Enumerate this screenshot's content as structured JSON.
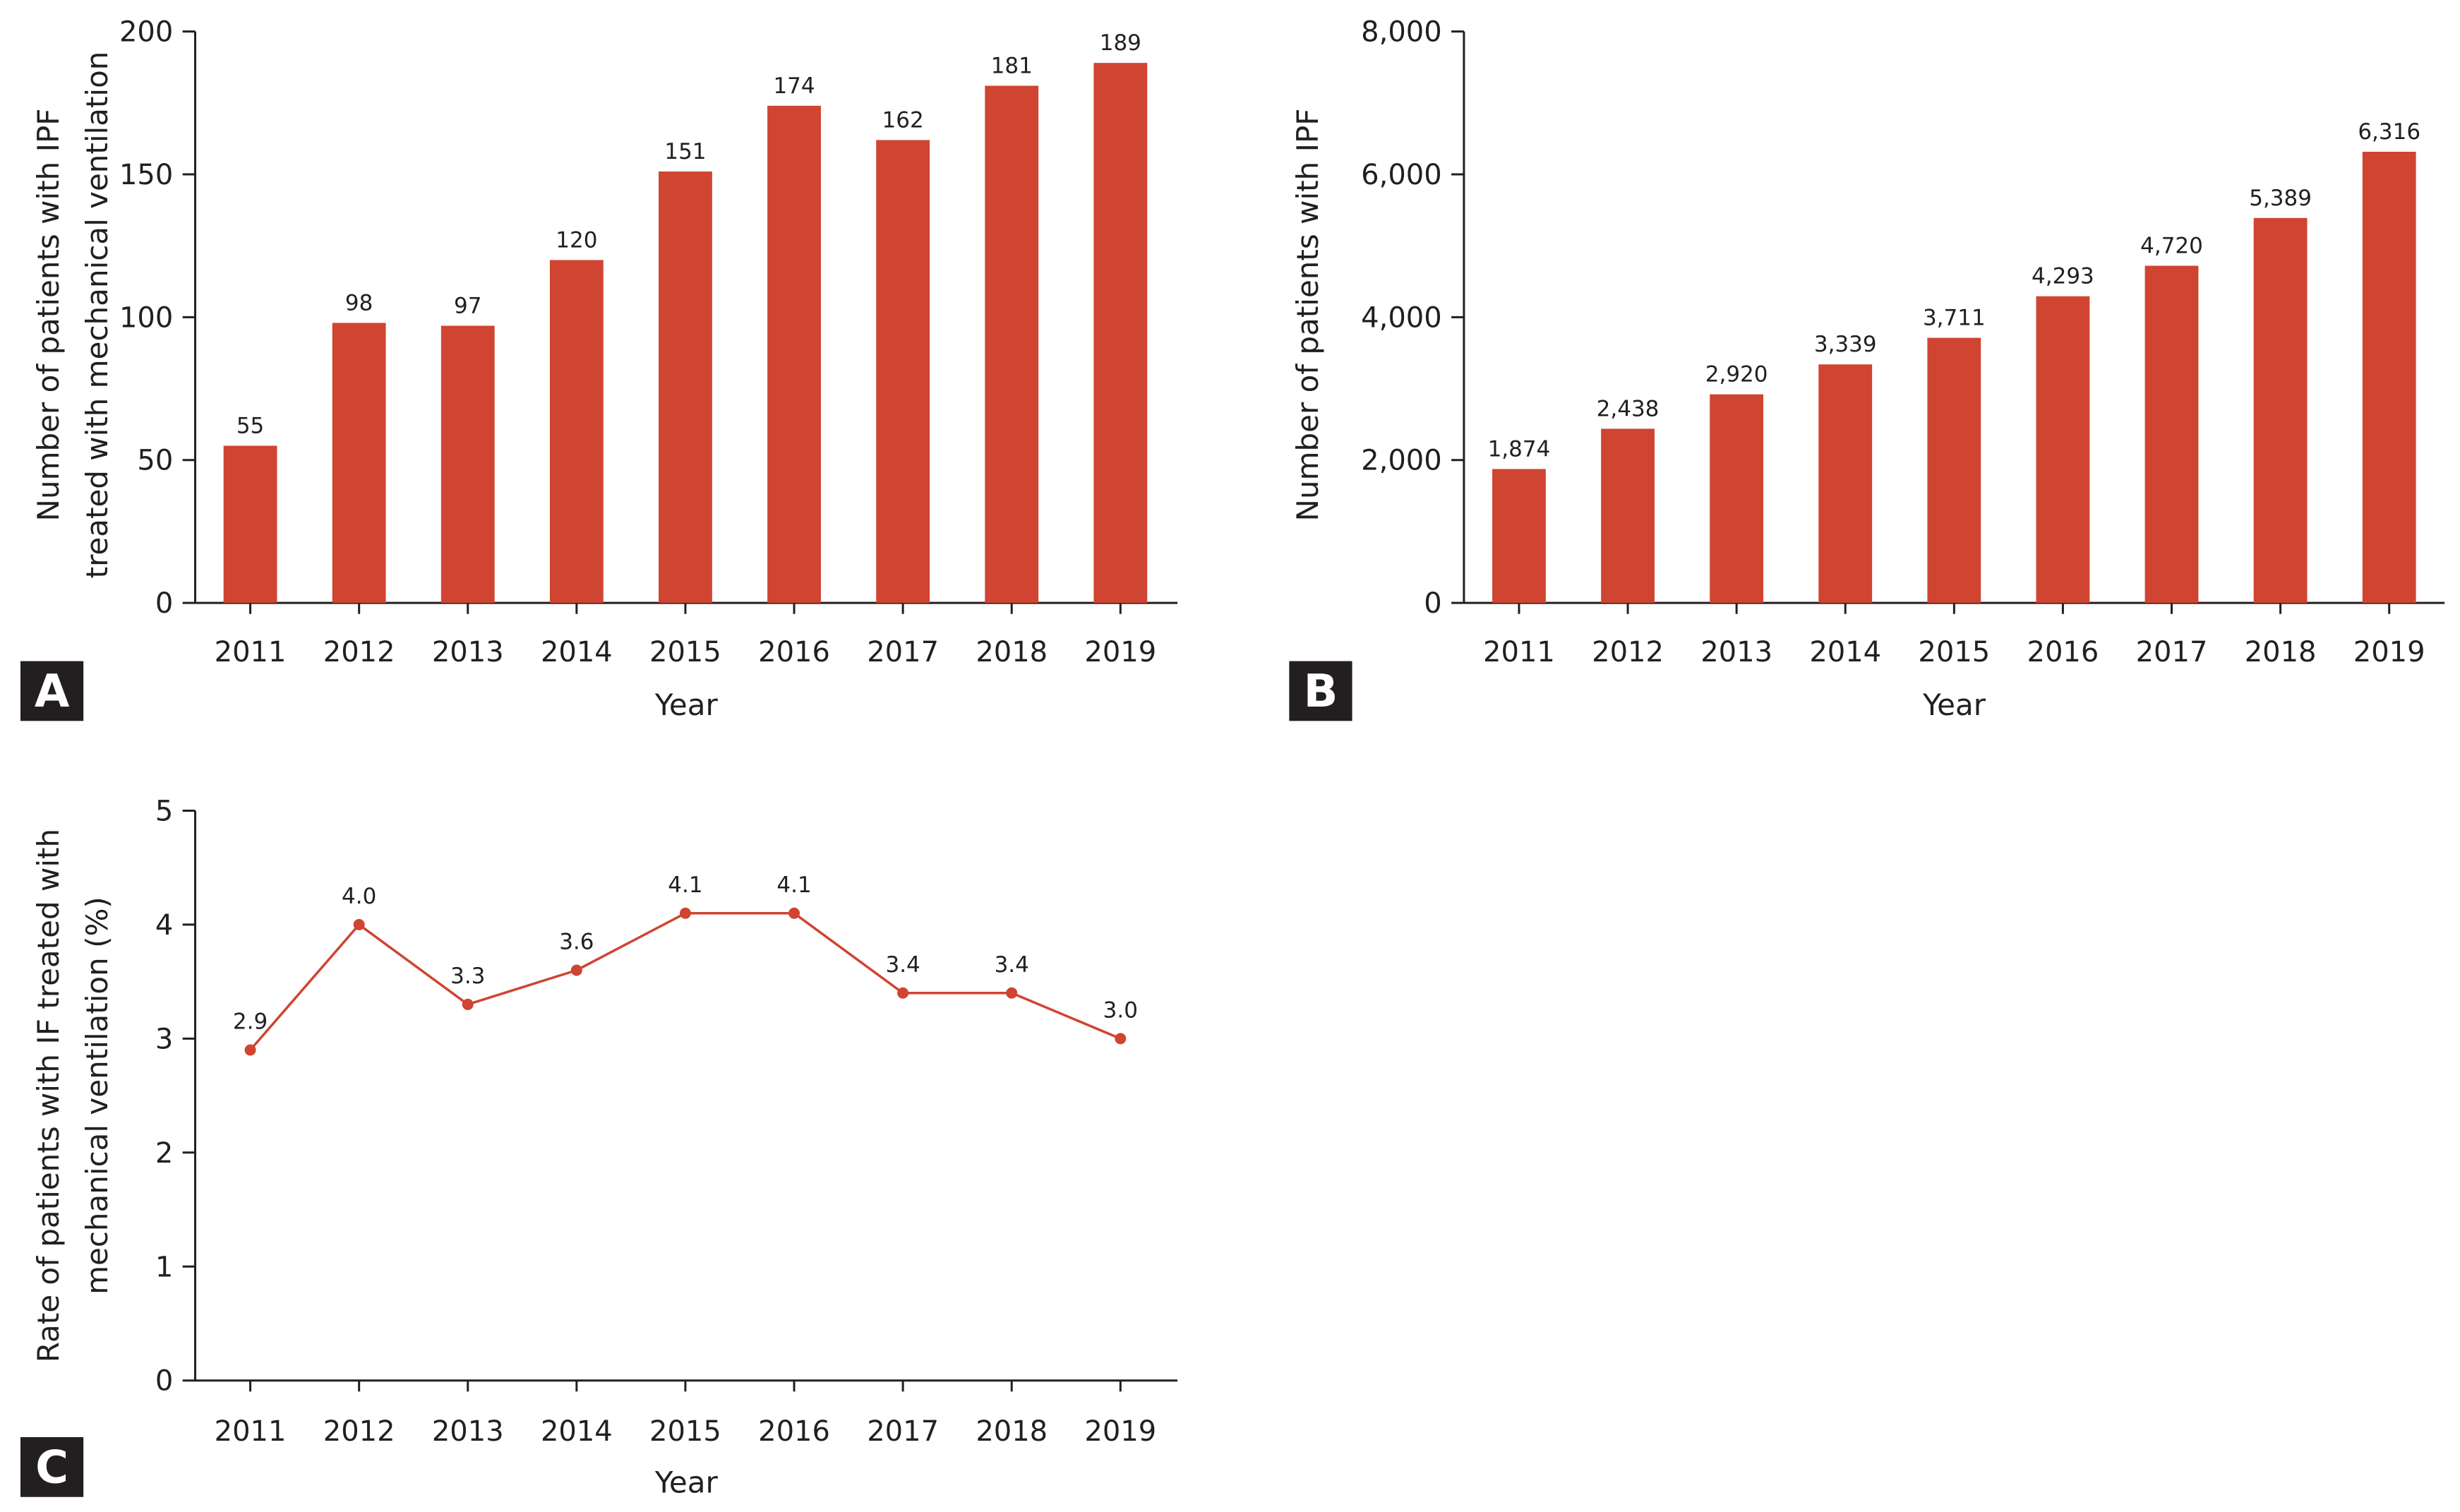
{
  "colors": {
    "bar": "#d04432",
    "line": "#d04432",
    "axis": "#231f20",
    "panel_label_bg": "#231f20"
  },
  "chart_data": [
    {
      "panel": "A",
      "type": "bar",
      "categories": [
        "2011",
        "2012",
        "2013",
        "2014",
        "2015",
        "2016",
        "2017",
        "2018",
        "2019"
      ],
      "values": [
        55,
        98,
        97,
        120,
        151,
        174,
        162,
        181,
        189
      ],
      "data_labels": [
        "55",
        "98",
        "97",
        "120",
        "151",
        "174",
        "162",
        "181",
        "189"
      ],
      "xlabel": "Year",
      "ylabel": [
        "Number of patients with IPF",
        "treated with mechanical ventilation"
      ],
      "ylim": [
        0,
        200
      ],
      "yticks": [
        0,
        50,
        100,
        150,
        200
      ],
      "ytick_labels": [
        "0",
        "50",
        "100",
        "150",
        "200"
      ],
      "grid": false
    },
    {
      "panel": "B",
      "type": "bar",
      "categories": [
        "2011",
        "2012",
        "2013",
        "2014",
        "2015",
        "2016",
        "2017",
        "2018",
        "2019"
      ],
      "values": [
        1874,
        2438,
        2920,
        3339,
        3711,
        4293,
        4720,
        5389,
        6316
      ],
      "data_labels": [
        "1,874",
        "2,438",
        "2,920",
        "3,339",
        "3,711",
        "4,293",
        "4,720",
        "5,389",
        "6,316"
      ],
      "xlabel": "Year",
      "ylabel": [
        "Number of patients with IPF"
      ],
      "ylim": [
        0,
        8000
      ],
      "yticks": [
        0,
        2000,
        4000,
        6000,
        8000
      ],
      "ytick_labels": [
        "0",
        "2,000",
        "4,000",
        "6,000",
        "8,000"
      ],
      "grid": false
    },
    {
      "panel": "C",
      "type": "line",
      "categories": [
        "2011",
        "2012",
        "2013",
        "2014",
        "2015",
        "2016",
        "2017",
        "2018",
        "2019"
      ],
      "values": [
        2.9,
        4.0,
        3.3,
        3.6,
        4.1,
        4.1,
        3.4,
        3.4,
        3.0
      ],
      "data_labels": [
        "2.9",
        "4.0",
        "3.3",
        "3.6",
        "4.1",
        "4.1",
        "3.4",
        "3.4",
        "3.0"
      ],
      "xlabel": "Year",
      "ylabel": [
        "Rate of patients with IF treated with",
        "mechanical ventilation (%)"
      ],
      "ylim": [
        0,
        5
      ],
      "yticks": [
        0,
        1,
        2,
        3,
        4,
        5
      ],
      "ytick_labels": [
        "0",
        "1",
        "2",
        "3",
        "4",
        "5"
      ],
      "grid": false
    }
  ]
}
